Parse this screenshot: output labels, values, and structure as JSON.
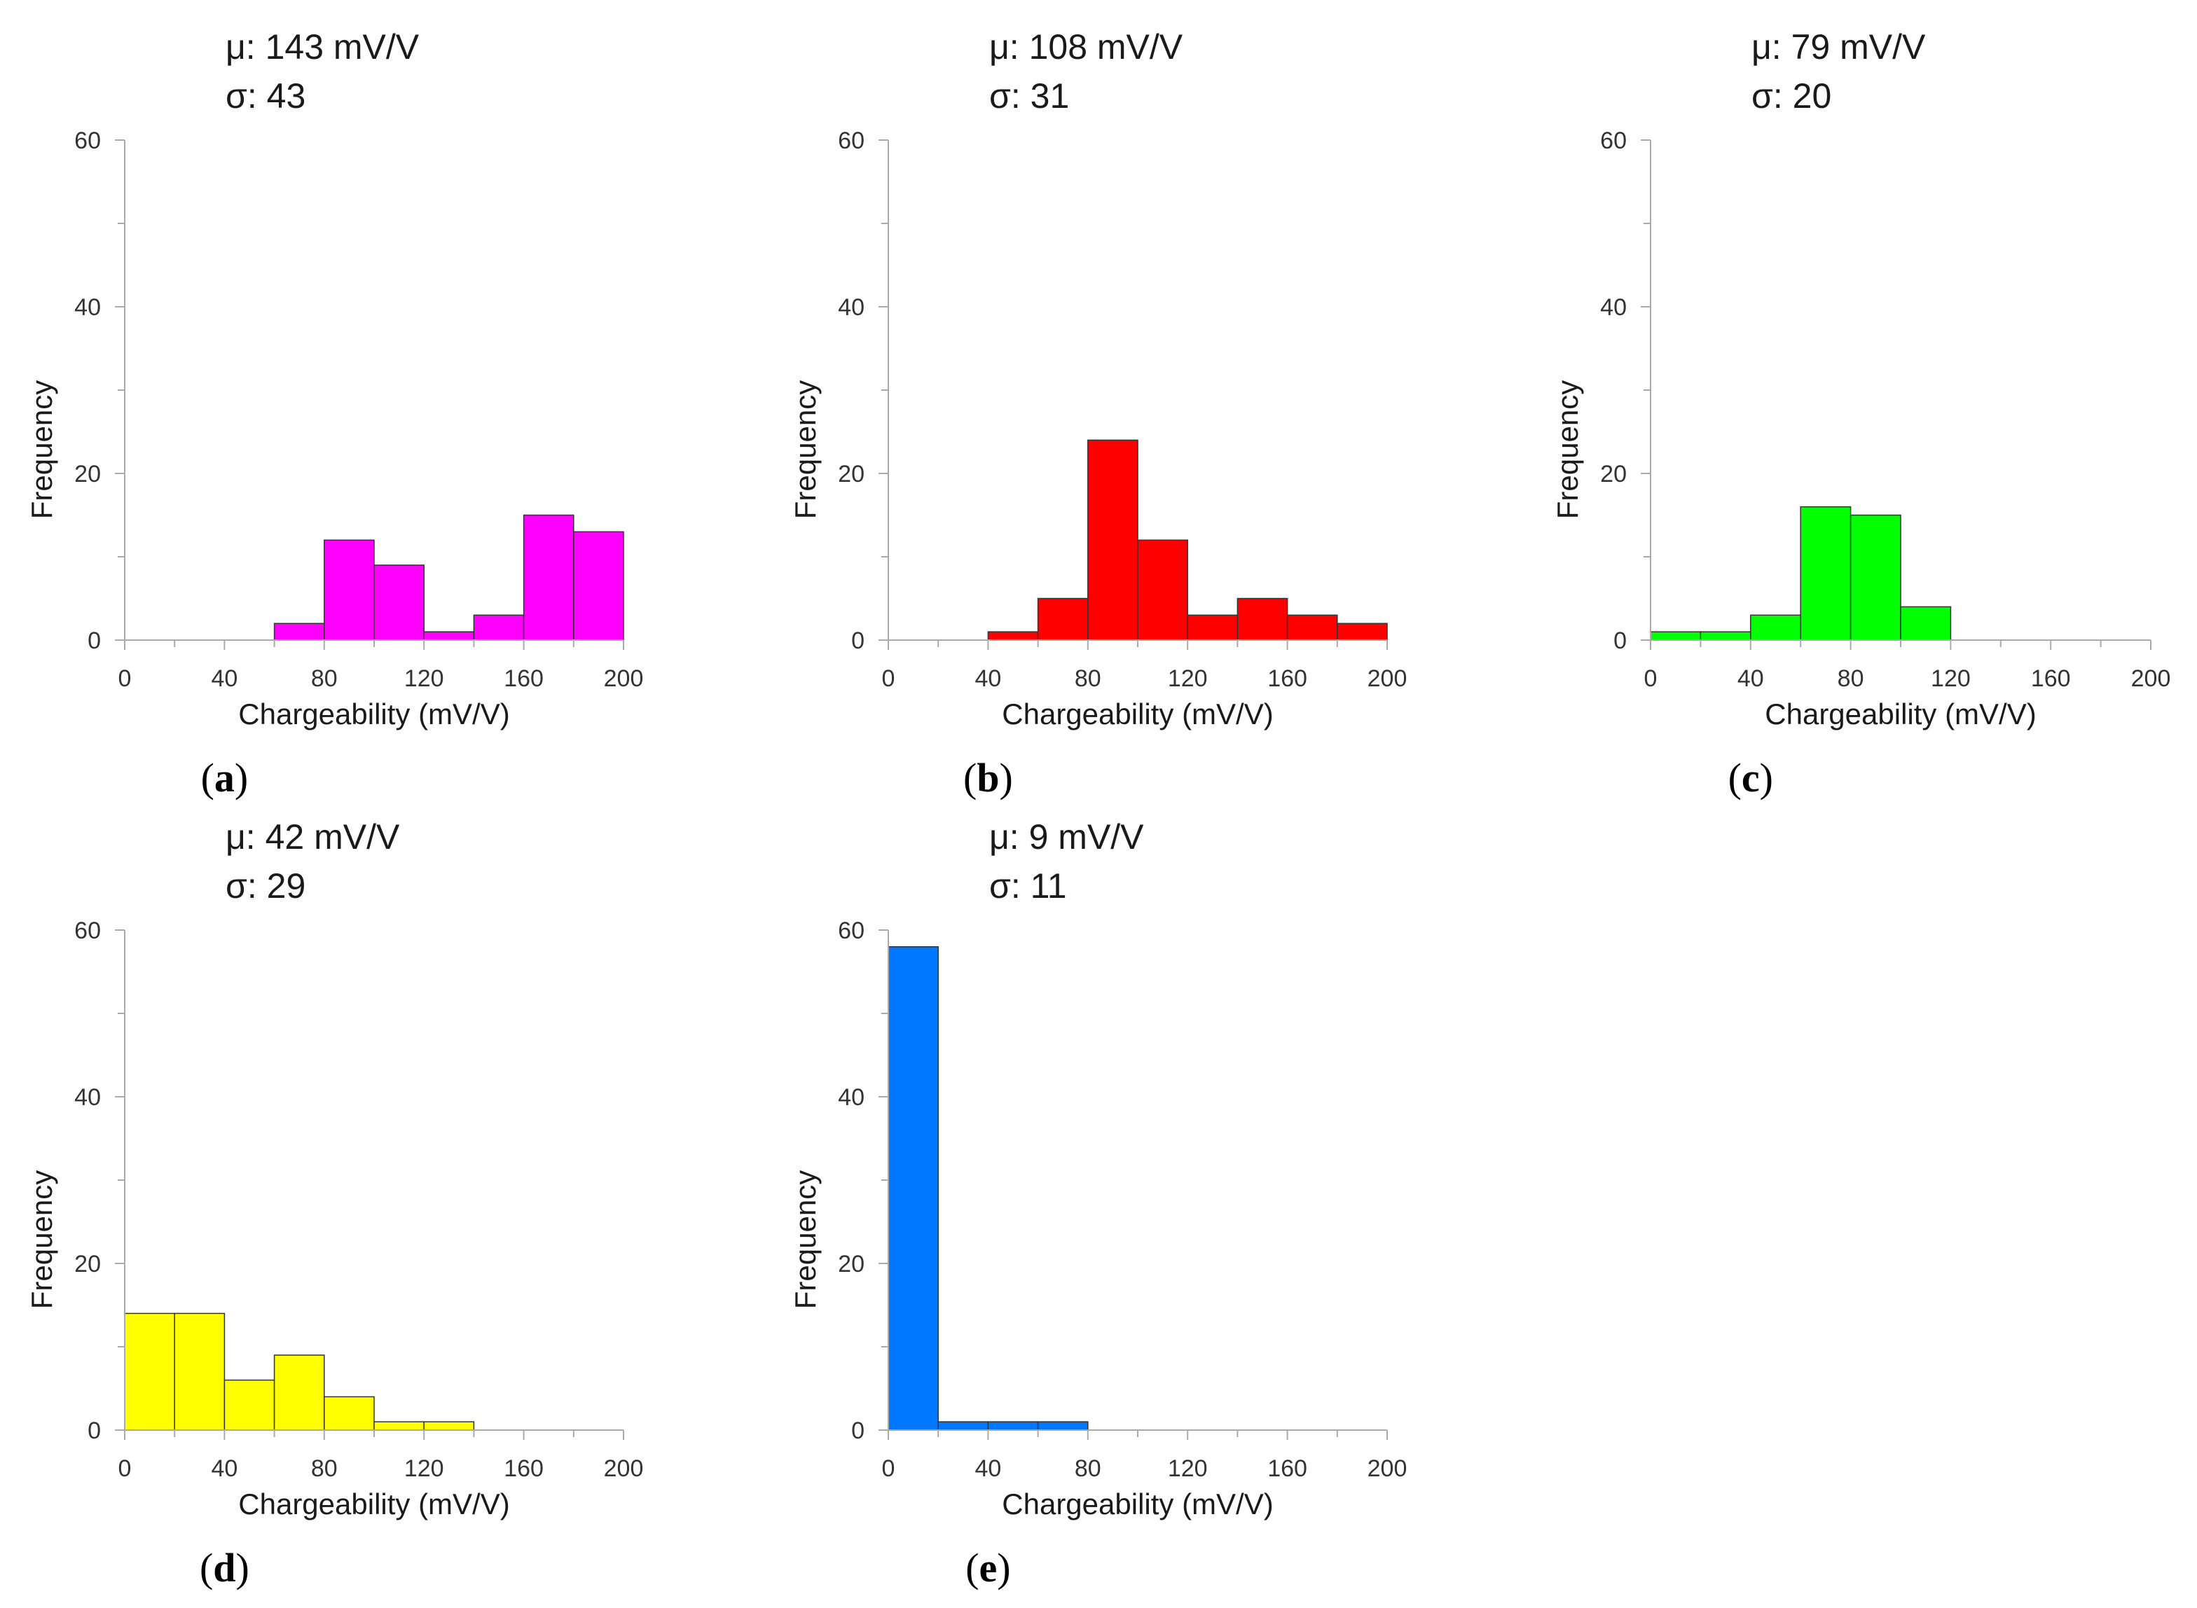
{
  "chart_data": [
    {
      "type": "bar",
      "panel": "a",
      "stats": {
        "mean": "μ: 143 mV/V",
        "std": "σ: 43"
      },
      "xlabel": "Chargeability (mV/V)",
      "ylabel": "Frequency",
      "xlim": [
        0,
        200
      ],
      "ylim": [
        0,
        60
      ],
      "xticks": [
        "0",
        "40",
        "80",
        "120",
        "160",
        "200"
      ],
      "yticks": [
        "0",
        "20",
        "40",
        "60"
      ],
      "bin_width": 20,
      "bin_starts": [
        0,
        20,
        40,
        60,
        80,
        100,
        120,
        140,
        160,
        180
      ],
      "values": [
        0,
        0,
        0,
        2,
        12,
        9,
        1,
        3,
        15,
        13
      ],
      "color": "#ff00ff"
    },
    {
      "type": "bar",
      "panel": "b",
      "stats": {
        "mean": "μ: 108 mV/V",
        "std": "σ: 31"
      },
      "xlabel": "Chargeability (mV/V)",
      "ylabel": "Frequency",
      "xlim": [
        0,
        200
      ],
      "ylim": [
        0,
        60
      ],
      "xticks": [
        "0",
        "40",
        "80",
        "120",
        "160",
        "200"
      ],
      "yticks": [
        "0",
        "20",
        "40",
        "60"
      ],
      "bin_width": 20,
      "bin_starts": [
        0,
        20,
        40,
        60,
        80,
        100,
        120,
        140,
        160,
        180
      ],
      "values": [
        0,
        0,
        1,
        5,
        24,
        12,
        3,
        5,
        3,
        2
      ],
      "color": "#ff0000"
    },
    {
      "type": "bar",
      "panel": "c",
      "stats": {
        "mean": "μ: 79 mV/V",
        "std": "σ: 20"
      },
      "xlabel": "Chargeability (mV/V)",
      "ylabel": "Frequency",
      "xlim": [
        0,
        200
      ],
      "ylim": [
        0,
        60
      ],
      "xticks": [
        "0",
        "40",
        "80",
        "120",
        "160",
        "200"
      ],
      "yticks": [
        "0",
        "20",
        "40",
        "60"
      ],
      "bin_width": 20,
      "bin_starts": [
        0,
        20,
        40,
        60,
        80,
        100,
        120,
        140,
        160,
        180
      ],
      "values": [
        1,
        1,
        3,
        16,
        15,
        4,
        0,
        0,
        0,
        0
      ],
      "color": "#00ff00"
    },
    {
      "type": "bar",
      "panel": "d",
      "stats": {
        "mean": "μ: 42 mV/V",
        "std": "σ: 29"
      },
      "xlabel": "Chargeability (mV/V)",
      "ylabel": "Frequency",
      "xlim": [
        0,
        200
      ],
      "ylim": [
        0,
        60
      ],
      "xticks": [
        "0",
        "40",
        "80",
        "120",
        "160",
        "200"
      ],
      "yticks": [
        "0",
        "20",
        "40",
        "60"
      ],
      "bin_width": 20,
      "bin_starts": [
        0,
        20,
        40,
        60,
        80,
        100,
        120,
        140,
        160,
        180
      ],
      "values": [
        14,
        14,
        6,
        9,
        4,
        1,
        1,
        0,
        0,
        0
      ],
      "color": "#ffff00"
    },
    {
      "type": "bar",
      "panel": "e",
      "stats": {
        "mean": "μ: 9 mV/V",
        "std": "σ: 11"
      },
      "xlabel": "Chargeability (mV/V)",
      "ylabel": "Frequency",
      "xlim": [
        0,
        200
      ],
      "ylim": [
        0,
        60
      ],
      "xticks": [
        "0",
        "40",
        "80",
        "120",
        "160",
        "200"
      ],
      "yticks": [
        "0",
        "20",
        "40",
        "60"
      ],
      "bin_width": 20,
      "bin_starts": [
        0,
        20,
        40,
        60,
        80,
        100,
        120,
        140,
        160,
        180
      ],
      "values": [
        58,
        1,
        1,
        1,
        0,
        0,
        0,
        0,
        0,
        0
      ],
      "color": "#0077ff"
    }
  ]
}
